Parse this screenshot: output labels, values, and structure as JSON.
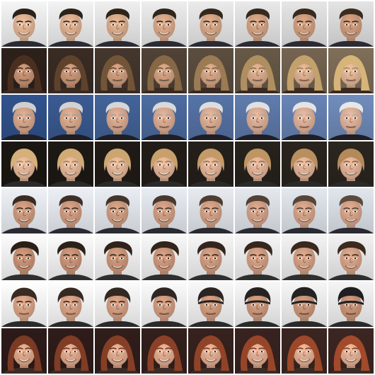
{
  "grid": {
    "rows": 8,
    "cols": 8,
    "row_subjects": [
      {
        "name": "smiling-man-short-hair",
        "bg_start": "#e9e9e9",
        "bg_end": "#d9d9d9",
        "hair_start": "#2a2118",
        "hair_end": "#3b2c1f",
        "skin_start": "#e2b594",
        "skin_end": "#cf9c7d",
        "shirt": "#2b2b33",
        "hair_style": "short",
        "smile": true
      },
      {
        "name": "woman-long-hair-dark-to-blonde",
        "bg_start": "#2b1f1a",
        "bg_end": "#7a6a55",
        "hair_start": "#4a2f1f",
        "hair_end": "#d7b47a",
        "skin_start": "#c79274",
        "skin_end": "#e3b796",
        "shirt": "#3a2a22",
        "hair_style": "long",
        "smile": false
      },
      {
        "name": "man-gray-hair-blue-background",
        "bg_start": "#2f4f86",
        "bg_end": "#6c86b3",
        "hair_start": "#cfcfcf",
        "hair_end": "#e7e7e7",
        "skin_start": "#d8a78b",
        "skin_end": "#e1b39b",
        "shirt": "#1e1e24",
        "hair_style": "short",
        "smile": false
      },
      {
        "name": "smiling-person-light-hair-dark-background",
        "bg_start": "#1a1612",
        "bg_end": "#2a241e",
        "hair_start": "#d6b07a",
        "hair_end": "#b48a5a",
        "skin_start": "#e6b899",
        "skin_end": "#e3b397",
        "shirt": "#2a2a2a",
        "hair_style": "bob",
        "smile": true
      },
      {
        "name": "smiling-man-light-background",
        "bg_start": "#e3e6ea",
        "bg_end": "#d6dbe2",
        "hair_start": "#3b2b22",
        "hair_end": "#5c4a3c",
        "skin_start": "#cf9b7f",
        "skin_end": "#d7a58b",
        "shirt": "#2a2a33",
        "hair_style": "short",
        "smile": true
      },
      {
        "name": "man-dark-curly-hair",
        "bg_start": "#f0f0f0",
        "bg_end": "#e6e6e6",
        "hair_start": "#2a1f18",
        "hair_end": "#3a2a20",
        "skin_start": "#c99275",
        "skin_end": "#d8a387",
        "shirt": "#2f2f2f",
        "hair_style": "curly",
        "smile": true
      },
      {
        "name": "man-hair-to-cap",
        "bg_start": "#f3f3f3",
        "bg_end": "#e9e9e9",
        "hair_start": "#3a2b22",
        "hair_end": "#1f1f22",
        "skin_start": "#d9a487",
        "skin_end": "#c99478",
        "shirt": "#2a2a2a",
        "hair_style": "cap",
        "smile": false
      },
      {
        "name": "woman-red-hair-warm-background",
        "bg_start": "#2b1a18",
        "bg_end": "#3a2420",
        "hair_start": "#7a3a24",
        "hair_end": "#a24a2a",
        "skin_start": "#e0a88a",
        "skin_end": "#e6b196",
        "shirt": "#3a2b27",
        "hair_style": "long",
        "smile": true
      }
    ]
  }
}
